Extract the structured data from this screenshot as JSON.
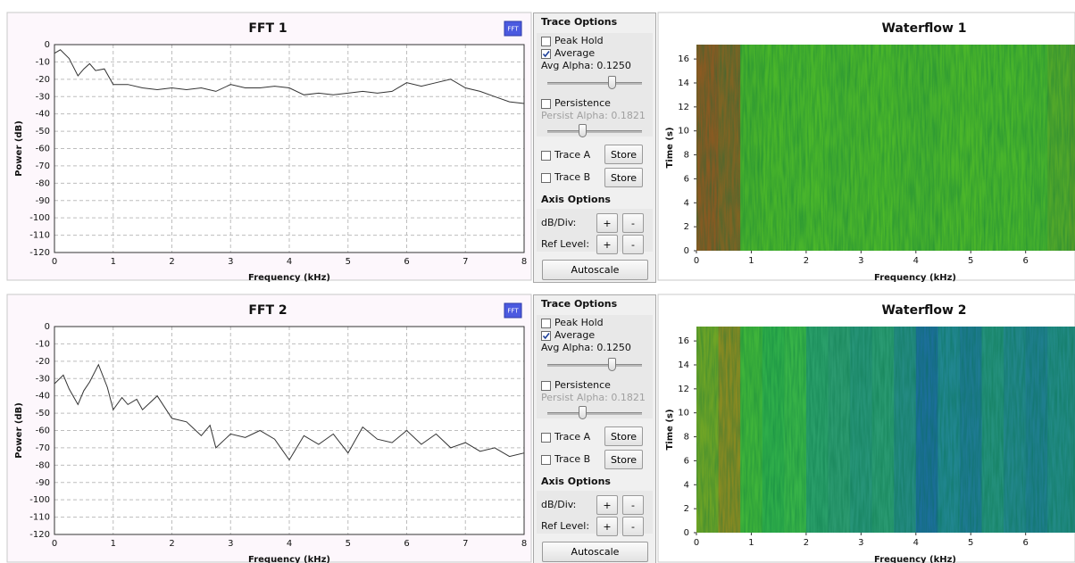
{
  "chart_data": [
    {
      "type": "line",
      "title": "FFT 1",
      "badge": "FFT",
      "xlabel": "Frequency (kHz)",
      "ylabel": "Power (dB)",
      "xlim": [
        0,
        8
      ],
      "xticks": [
        0,
        1,
        2,
        3,
        4,
        5,
        6,
        7,
        8
      ],
      "ylim": [
        -120,
        0
      ],
      "yticks": [
        -120,
        -110,
        -100,
        -90,
        -80,
        -70,
        -60,
        -50,
        -40,
        -30,
        -20,
        -10,
        0
      ],
      "grid": true,
      "series": [
        {
          "color": "#333333",
          "x": [
            0,
            0.1,
            0.25,
            0.4,
            0.5,
            0.6,
            0.7,
            0.85,
            1.0,
            1.25,
            1.5,
            1.75,
            2.0,
            2.25,
            2.5,
            2.75,
            3.0,
            3.25,
            3.5,
            3.75,
            4.0,
            4.25,
            4.5,
            4.75,
            5.0,
            5.25,
            5.5,
            5.75,
            6.0,
            6.25,
            6.5,
            6.75,
            7.0,
            7.25,
            7.5,
            7.75,
            8.0
          ],
          "values": [
            -5,
            -3,
            -8,
            -18,
            -14,
            -11,
            -15,
            -14,
            -23,
            -23,
            -25,
            -26,
            -25,
            -26,
            -25,
            -27,
            -23,
            -25,
            -25,
            -24,
            -25,
            -29,
            -28,
            -29,
            -28,
            -27,
            -28,
            -27,
            -22,
            -24,
            -22,
            -20,
            -25,
            -27,
            -30,
            -33,
            -34
          ]
        }
      ]
    },
    {
      "type": "waterfall",
      "title": "Waterflow 1",
      "xlabel": "Frequency (kHz)",
      "ylabel": "Time (s)",
      "xlim": [
        0,
        6.9
      ],
      "xticks": [
        0,
        1,
        2,
        3,
        4,
        5,
        6
      ],
      "ylim": [
        0,
        17.2
      ],
      "yticks": [
        0,
        2,
        4,
        6,
        8,
        10,
        12,
        14,
        16
      ],
      "bins": [
        0,
        0.4,
        0.8,
        1.2,
        1.6,
        2.0,
        2.4,
        2.8,
        3.2,
        3.6,
        4.0,
        4.4,
        4.8,
        5.2,
        5.6,
        6.0,
        6.4,
        6.8,
        6.9
      ],
      "colors": [
        "#8a5a22",
        "#7f6424",
        "#46b02c",
        "#4ab62a",
        "#48b42c",
        "#4cb82a",
        "#47b22d",
        "#4ab52b",
        "#4cb82a",
        "#48b32c",
        "#46b12d",
        "#4ab52b",
        "#4cb72a",
        "#48b42c",
        "#4ab62b",
        "#47b22d",
        "#52a82a",
        "#569f2a"
      ]
    },
    {
      "type": "line",
      "title": "FFT 2",
      "badge": "FFT",
      "xlabel": "Frequency (kHz)",
      "ylabel": "Power (dB)",
      "xlim": [
        0,
        8
      ],
      "xticks": [
        0,
        1,
        2,
        3,
        4,
        5,
        6,
        7,
        8
      ],
      "ylim": [
        -120,
        0
      ],
      "yticks": [
        -120,
        -110,
        -100,
        -90,
        -80,
        -70,
        -60,
        -50,
        -40,
        -30,
        -20,
        -10,
        0
      ],
      "grid": true,
      "series": [
        {
          "color": "#333333",
          "x": [
            0,
            0.15,
            0.25,
            0.4,
            0.5,
            0.6,
            0.75,
            0.9,
            1.0,
            1.15,
            1.25,
            1.4,
            1.5,
            1.75,
            2.0,
            2.25,
            2.5,
            2.65,
            2.75,
            3.0,
            3.25,
            3.5,
            3.75,
            4.0,
            4.25,
            4.5,
            4.75,
            5.0,
            5.25,
            5.5,
            5.75,
            6.0,
            6.25,
            6.5,
            6.75,
            7.0,
            7.25,
            7.5,
            7.75,
            8.0
          ],
          "values": [
            -33,
            -28,
            -36,
            -45,
            -37,
            -32,
            -22,
            -35,
            -48,
            -41,
            -45,
            -42,
            -48,
            -40,
            -53,
            -55,
            -63,
            -57,
            -70,
            -62,
            -64,
            -60,
            -65,
            -77,
            -63,
            -68,
            -62,
            -73,
            -58,
            -65,
            -67,
            -60,
            -68,
            -62,
            -70,
            -67,
            -72,
            -70,
            -75,
            -73
          ]
        }
      ]
    },
    {
      "type": "waterfall",
      "title": "Waterflow 2",
      "xlabel": "Frequency (kHz)",
      "ylabel": "Time (s)",
      "xlim": [
        0,
        6.9
      ],
      "xticks": [
        0,
        1,
        2,
        3,
        4,
        5,
        6
      ],
      "ylim": [
        0,
        17.2
      ],
      "yticks": [
        0,
        2,
        4,
        6,
        8,
        10,
        12,
        14,
        16
      ],
      "bins": [
        0,
        0.4,
        0.8,
        1.2,
        1.6,
        2.0,
        2.4,
        2.8,
        3.2,
        3.6,
        4.0,
        4.4,
        4.8,
        5.2,
        5.6,
        6.0,
        6.4,
        6.8,
        6.9
      ],
      "colors": [
        "#6fa426",
        "#8a8a22",
        "#3fb43a",
        "#2fae4a",
        "#38b448",
        "#2a9f6a",
        "#2c9a70",
        "#279478",
        "#2a9a72",
        "#248a82",
        "#1c6f9a",
        "#218690",
        "#1e7a92",
        "#24907c",
        "#22868a",
        "#1f7e8e",
        "#228a86",
        "#23887e"
      ]
    }
  ],
  "controls": [
    {
      "title": "Trace Options",
      "peak_hold": {
        "label": "Peak Hold",
        "checked": false
      },
      "average": {
        "label": "Average",
        "checked": true
      },
      "avg_alpha": "Avg Alpha: 0.1250",
      "persistence": {
        "label": "Persistence",
        "checked": false
      },
      "persist_alpha": "Persist Alpha: 0.1821",
      "trace_a": {
        "label": "Trace A",
        "checked": false,
        "button": "Store"
      },
      "trace_b": {
        "label": "Trace B",
        "checked": false,
        "button": "Store"
      },
      "axis_title": "Axis Options",
      "db_div": {
        "label": "dB/Div:",
        "plus": "+",
        "minus": "-"
      },
      "ref_level": {
        "label": "Ref Level:",
        "plus": "+",
        "minus": "-"
      },
      "autoscale": "Autoscale"
    },
    {
      "title": "Trace Options",
      "peak_hold": {
        "label": "Peak Hold",
        "checked": false
      },
      "average": {
        "label": "Average",
        "checked": true
      },
      "avg_alpha": "Avg Alpha: 0.1250",
      "persistence": {
        "label": "Persistence",
        "checked": false
      },
      "persist_alpha": "Persist Alpha: 0.1821",
      "trace_a": {
        "label": "Trace A",
        "checked": false,
        "button": "Store"
      },
      "trace_b": {
        "label": "Trace B",
        "checked": false,
        "button": "Store"
      },
      "axis_title": "Axis Options",
      "db_div": {
        "label": "dB/Div:",
        "plus": "+",
        "minus": "-"
      },
      "ref_level": {
        "label": "Ref Level:",
        "plus": "+",
        "minus": "-"
      },
      "autoscale": "Autoscale"
    }
  ]
}
